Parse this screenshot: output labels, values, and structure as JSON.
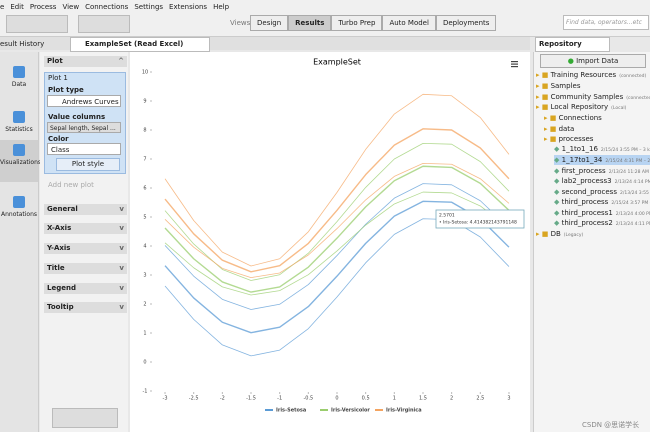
{
  "menu": [
    "e",
    "Edit",
    "Process",
    "View",
    "Connections",
    "Settings",
    "Extensions",
    "Help"
  ],
  "views": {
    "label": "Views:",
    "items": [
      "Design",
      "Results",
      "Turbo Prep",
      "Auto Model",
      "Deployments"
    ]
  },
  "search": "Find data, operators...etc",
  "tabs": {
    "history": "esult History",
    "main": "ExampleSet (Read Excel)",
    "repository": "Repository"
  },
  "sidebar": [
    "Data",
    "Statistics",
    "Visualizations",
    "Annotations"
  ],
  "plot_panel": {
    "header": "Plot",
    "plot_name": "Plot 1",
    "plot_type_label": "Plot type",
    "plot_type": "Andrews Curves",
    "value_columns_label": "Value columns",
    "value_columns": "Sepal length, Sepal ...",
    "color_label": "Color",
    "color": "Class",
    "plot_style": "Plot style",
    "add_plot": "Add new plot",
    "sections": [
      "General",
      "X-Axis",
      "Y-Axis",
      "Title",
      "Legend",
      "Tooltip"
    ]
  },
  "repository": {
    "import": "Import Data",
    "items": [
      {
        "label": "Training Resources",
        "note": "(connected)"
      },
      {
        "label": "Samples"
      },
      {
        "label": "Community Samples",
        "note": "(connected)"
      },
      {
        "label": "Local Repository",
        "note": "(Local)"
      },
      {
        "label": "Connections"
      },
      {
        "label": "data"
      },
      {
        "label": "processes"
      },
      {
        "label": "1_1to1_16",
        "note": "2/15/24 3:55 PM – 3 kB"
      },
      {
        "label": "1_17to1_34",
        "note": "2/15/24 4:31 PM – 2 kB"
      },
      {
        "label": "first_process",
        "note": "2/13/24 11:28 AM – 4 kB"
      },
      {
        "label": "lab2_process3",
        "note": "2/13/24 4:14 PM – 3"
      },
      {
        "label": "second_process",
        "note": "2/13/24 3:55 PM –"
      },
      {
        "label": "third_process",
        "note": "2/15/24 3:57 PM – 5"
      },
      {
        "label": "third_process1",
        "note": "2/13/24 4:00 PM –"
      },
      {
        "label": "third_process2",
        "note": "2/13/24 4:11 PM –"
      },
      {
        "label": "DB",
        "note": "(Legacy)"
      }
    ]
  },
  "watermark": "CSDN @思诺学长",
  "chart_data": {
    "type": "line",
    "title": "ExampleSet",
    "x": [
      -3,
      -2.5,
      -2,
      -1.5,
      -1,
      -0.5,
      0,
      0.5,
      1,
      1.5,
      2,
      2.5,
      3
    ],
    "xlim": [
      -3.14,
      3.14
    ],
    "xticks": [
      -3,
      -2.5,
      -2,
      -1.5,
      -1,
      -0.5,
      0,
      0.5,
      1,
      1.5,
      2,
      2.5,
      3
    ],
    "ylim": [
      -1,
      10
    ],
    "yticks": [
      -1,
      0,
      1,
      2,
      3,
      4,
      5,
      6,
      7,
      8,
      9,
      10
    ],
    "series": [
      {
        "name": "Iris-Setosa",
        "color": "#5b9bd5",
        "curves": [
          [
            2.62,
            1.47,
            0.59,
            0.21,
            0.41,
            1.15,
            2.24,
            3.42,
            4.4,
            4.94,
            4.91,
            4.31,
            3.29
          ],
          [
            3.32,
            2.21,
            1.37,
            1.01,
            1.2,
            1.91,
            2.96,
            4.09,
            5.03,
            5.54,
            5.51,
            4.94,
            3.96
          ],
          [
            4.02,
            2.96,
            2.16,
            1.81,
            1.99,
            2.67,
            3.67,
            4.75,
            5.65,
            6.15,
            6.11,
            5.56,
            4.63
          ]
        ]
      },
      {
        "name": "Iris-Versicolor",
        "color": "#9acd6e",
        "curves": [
          [
            4.11,
            3.25,
            2.59,
            2.31,
            2.46,
            3.01,
            3.83,
            4.72,
            5.45,
            5.86,
            5.83,
            5.38,
            4.62
          ],
          [
            4.62,
            3.56,
            2.76,
            2.41,
            2.59,
            3.27,
            4.27,
            5.35,
            6.25,
            6.75,
            6.71,
            6.16,
            5.23
          ],
          [
            5.22,
            4.07,
            3.19,
            2.81,
            3.01,
            3.75,
            4.84,
            6.02,
            7.0,
            7.54,
            7.51,
            6.91,
            5.89
          ]
        ]
      },
      {
        "name": "Iris-Virginica",
        "color": "#f4a460",
        "curves": [
          [
            4.92,
            3.96,
            3.23,
            2.91,
            3.07,
            3.69,
            4.6,
            5.59,
            6.4,
            6.85,
            6.82,
            6.32,
            5.47
          ],
          [
            5.62,
            4.42,
            3.51,
            3.11,
            3.32,
            4.09,
            5.23,
            6.46,
            7.48,
            8.04,
            8.0,
            7.38,
            6.32
          ],
          [
            6.32,
            4.88,
            3.79,
            3.31,
            3.56,
            4.49,
            5.85,
            7.33,
            8.55,
            9.23,
            9.18,
            8.43,
            7.16
          ]
        ]
      }
    ],
    "tooltip": {
      "x": "2.5701",
      "text": "• Iris-Setosa: 4.414382143791148"
    }
  }
}
